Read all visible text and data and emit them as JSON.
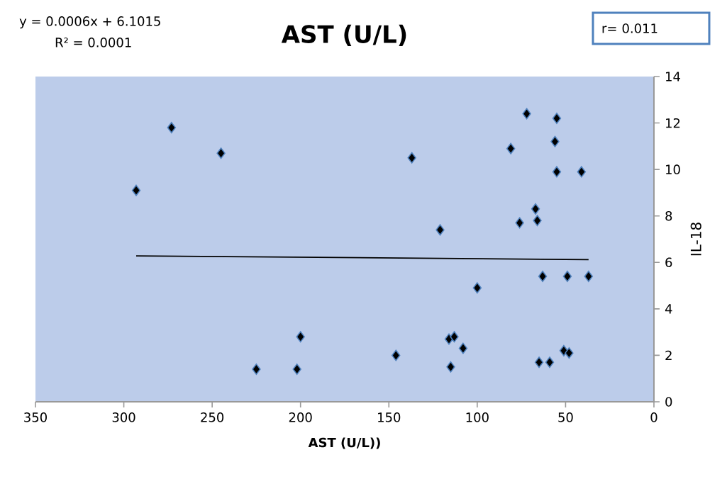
{
  "chart_data": {
    "type": "scatter",
    "title": "AST (U/L)",
    "xlabel": "AST (U/L))",
    "ylabel": "IL-18",
    "xlim": [
      350,
      0
    ],
    "xticks": [
      350,
      300,
      250,
      200,
      150,
      100,
      50,
      0
    ],
    "ylim": [
      0,
      14
    ],
    "yticks": [
      0,
      2,
      4,
      6,
      8,
      10,
      12,
      14
    ],
    "grid": false,
    "annotations": [
      "y = 0.0006x + 6.1015",
      "R² = 0.0001",
      "r= 0.011"
    ],
    "series": [
      {
        "marker": "diamond",
        "color": "#000000",
        "x": [
          293,
          273,
          245,
          225,
          202,
          200,
          137,
          121,
          146,
          116,
          113,
          108,
          115,
          100,
          72,
          55,
          56,
          81,
          55,
          41,
          67,
          76,
          66,
          63,
          49,
          37,
          65,
          59,
          51,
          48
        ],
        "values": [
          9.1,
          11.8,
          10.7,
          1.4,
          1.4,
          2.8,
          10.5,
          7.4,
          2.0,
          2.7,
          2.8,
          2.3,
          1.5,
          4.9,
          12.4,
          12.2,
          11.2,
          10.9,
          9.9,
          9.9,
          8.3,
          7.7,
          7.8,
          5.4,
          5.4,
          5.4,
          1.7,
          1.7,
          2.2,
          2.1
        ]
      },
      {
        "type": "line",
        "marker": "none",
        "color": "#000000",
        "x": [
          293,
          37
        ],
        "values": [
          6.28,
          6.12
        ]
      }
    ]
  }
}
